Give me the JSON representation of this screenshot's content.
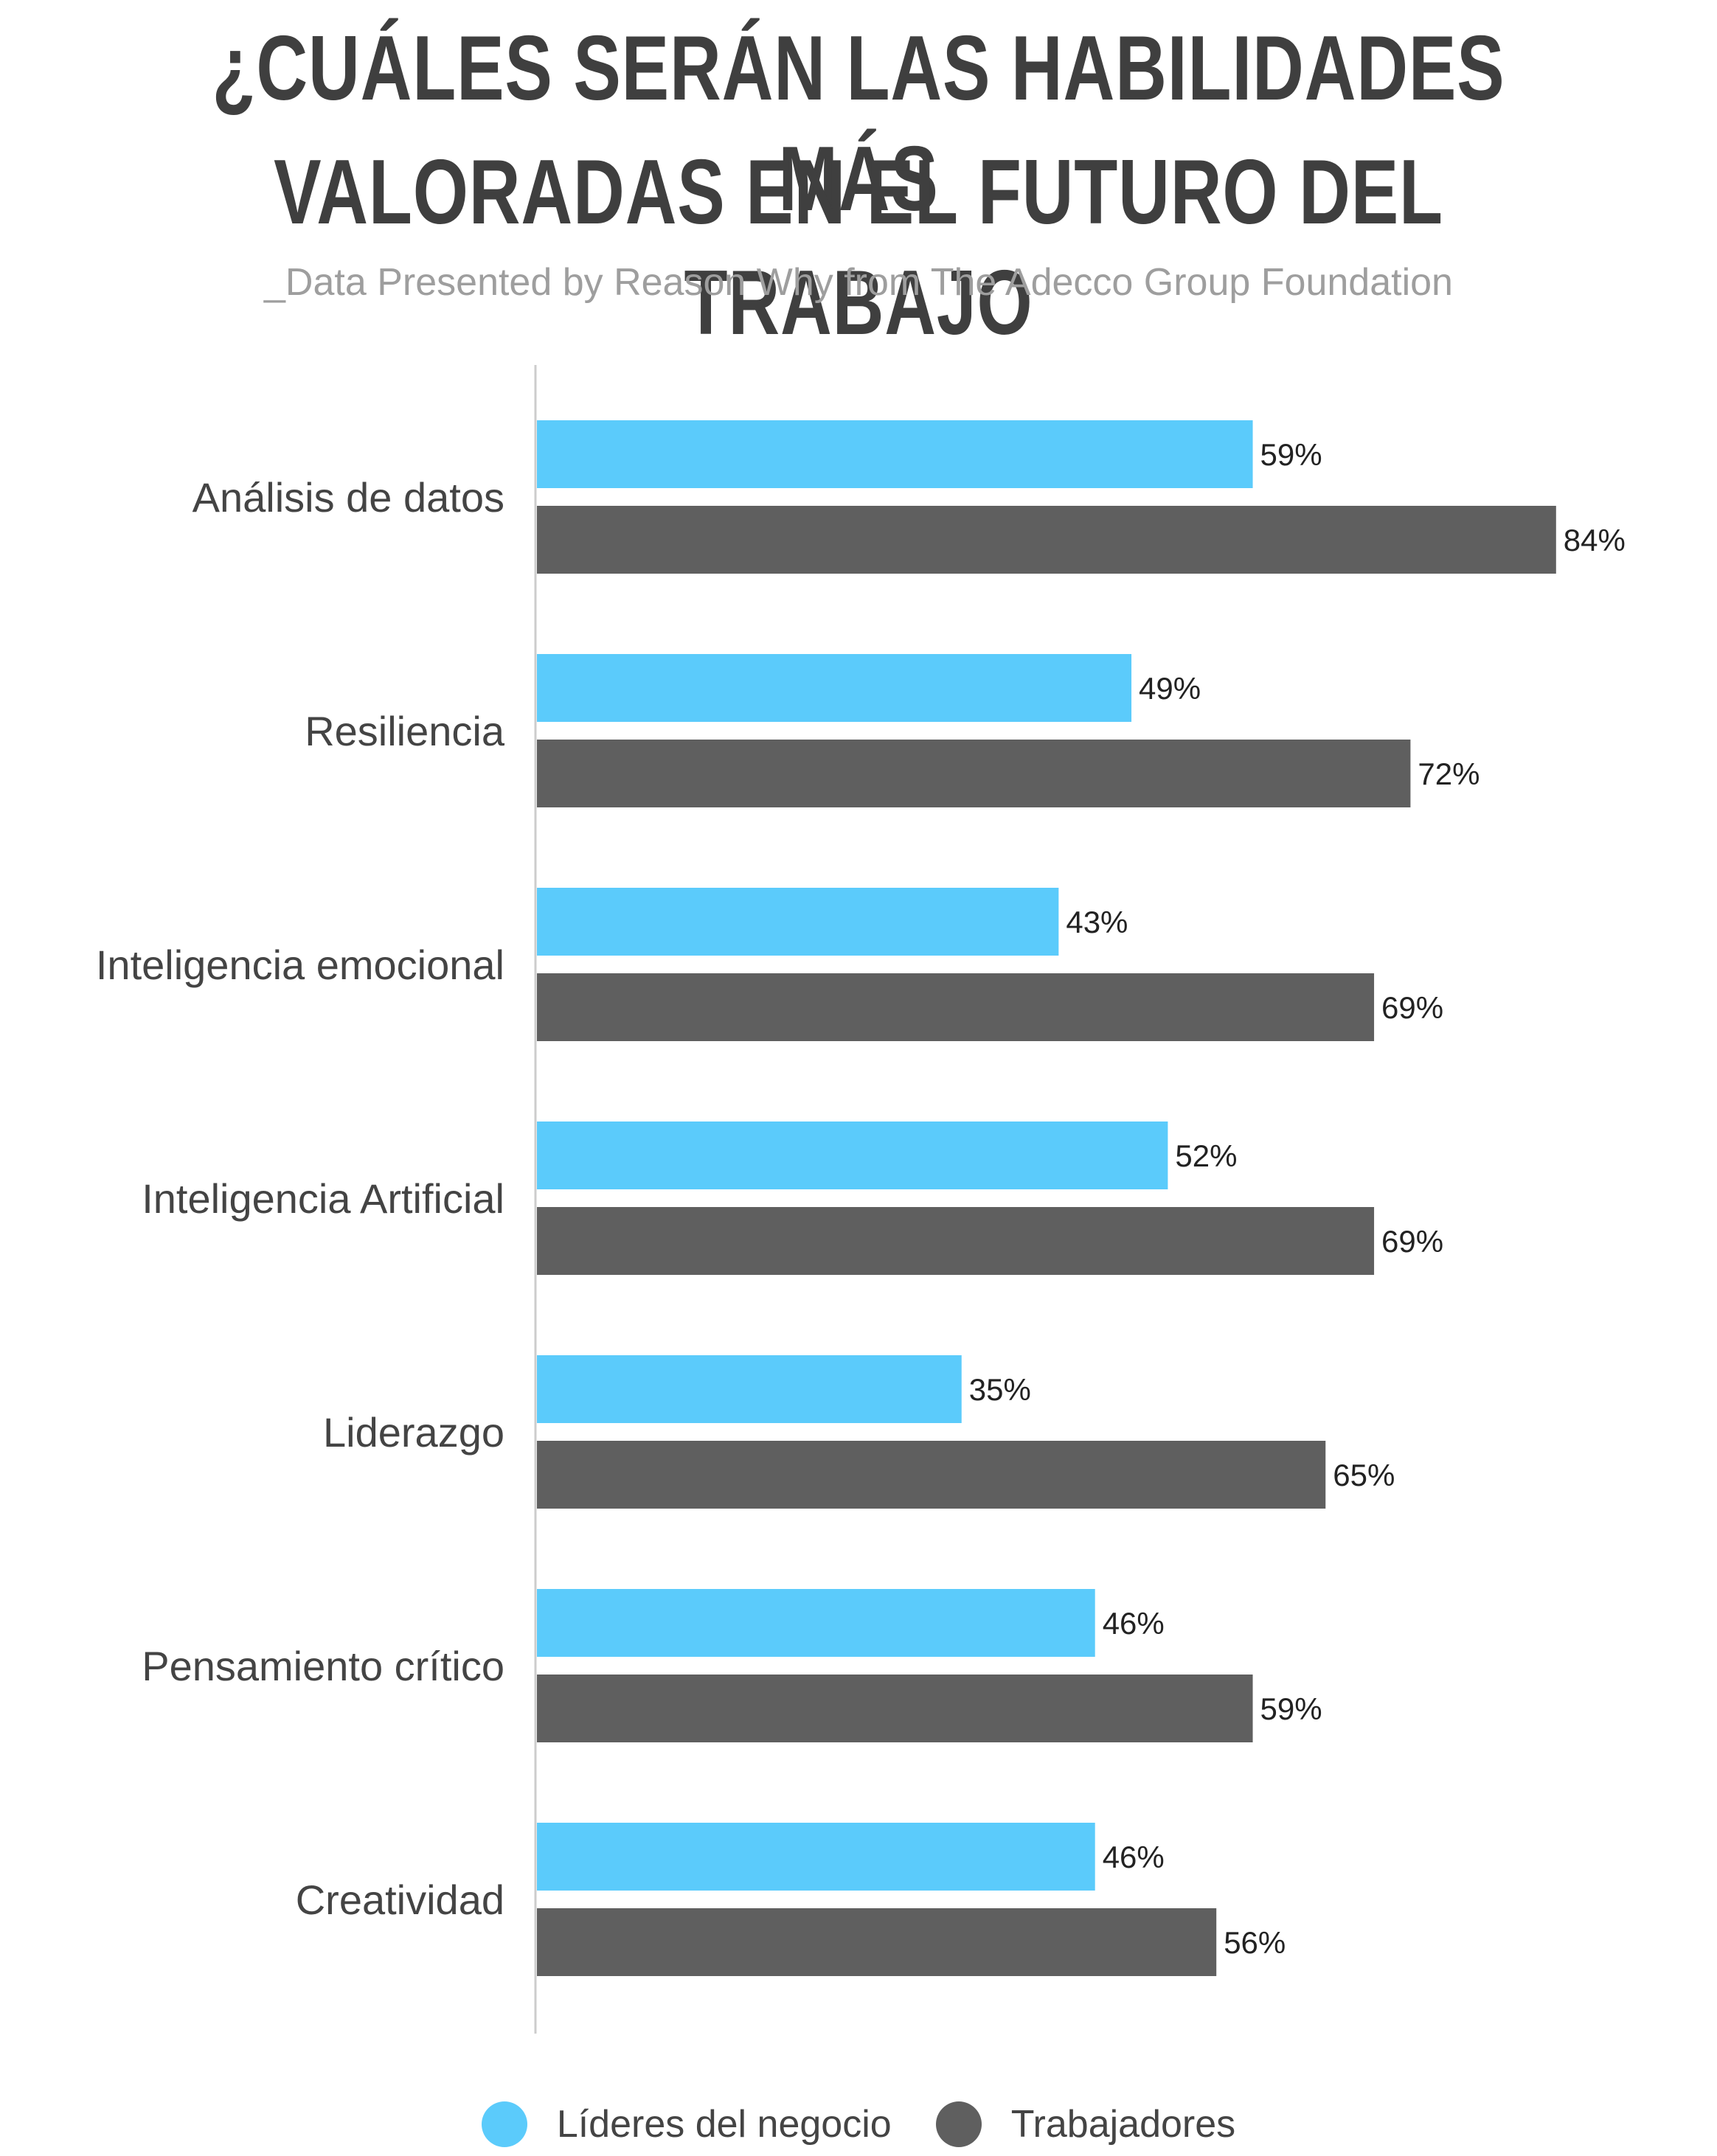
{
  "header": {
    "title_line_1": "¿CUÁLES SERÁN LAS HABILIDADES MÁS",
    "title_line_2": "VALORADAS EN EL FUTURO DEL TRABAJO",
    "subtitle": "_Data Presented by Reason Why from The Adecco Group Foundation"
  },
  "chart_data": {
    "type": "bar",
    "orientation": "horizontal",
    "title": "¿CUÁLES SERÁN LAS HABILIDADES MÁS VALORADAS EN EL FUTURO DEL TRABAJO",
    "subtitle": "_Data Presented by Reason Why from The Adecco Group Foundation",
    "categories": [
      "Análisis de datos",
      "Resiliencia",
      "Inteligencia emocional",
      "Inteligencia Artificial",
      "Liderazgo",
      "Pensamiento crítico",
      "Creatividad"
    ],
    "series": [
      {
        "name": "Líderes del negocio",
        "color": "#5bcbfb",
        "values": [
          59,
          49,
          43,
          52,
          35,
          46,
          46
        ],
        "labels": [
          "59%",
          "49%",
          "43%",
          "52%",
          "35%",
          "46%",
          "46%"
        ]
      },
      {
        "name": "Trabajadores",
        "color": "#5f5f5f",
        "values": [
          84,
          72,
          69,
          69,
          65,
          59,
          56
        ],
        "labels": [
          "84%",
          "72%",
          "69%",
          "69%",
          "65%",
          "59%",
          "56%"
        ]
      }
    ],
    "xlim": [
      0,
      100
    ],
    "grid": false,
    "legend": "bottom-center",
    "axis_color": "#cccccc"
  }
}
